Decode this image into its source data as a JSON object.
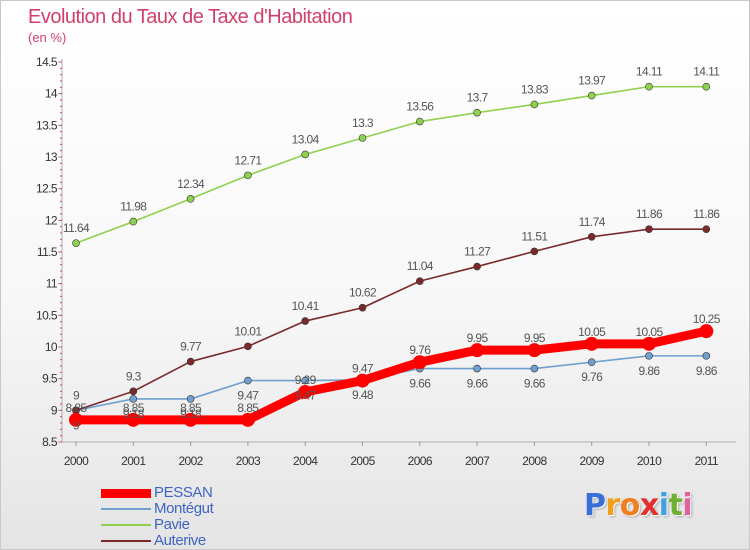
{
  "title": "Evolution du Taux de Taxe d'Habitation",
  "unit": "(en %)",
  "logo": {
    "letters": [
      "P",
      "r",
      "o",
      "x",
      "i",
      "t",
      "i"
    ],
    "colors": [
      "#3a6fd8",
      "#f0a020",
      "#f07f20",
      "#e03030",
      "#40a0e0",
      "#70b030",
      "#e060a0"
    ]
  },
  "chart_data": {
    "type": "line",
    "title": "Evolution du Taux de Taxe d'Habitation",
    "ylabel": "(en %)",
    "xlabel": "",
    "x": [
      "2000",
      "2001",
      "2002",
      "2003",
      "2004",
      "2005",
      "2006",
      "2007",
      "2008",
      "2009",
      "2010",
      "2011"
    ],
    "ylim": [
      8.5,
      14.5
    ],
    "yticks": [
      "8.5",
      "9",
      "9.5",
      "10",
      "10.5",
      "11",
      "11.5",
      "12",
      "12.5",
      "13",
      "13.5",
      "14",
      "14.5"
    ],
    "grid": false,
    "legend_position": "bottom-left",
    "series": [
      {
        "name": "PESSAN",
        "color": "#ff0000",
        "values": [
          8.85,
          8.85,
          8.85,
          8.85,
          9.29,
          9.47,
          9.76,
          9.95,
          9.95,
          10.05,
          10.05,
          10.25
        ],
        "labels": [
          "8.85",
          "8.85",
          "8.85",
          "8.85",
          "9.29",
          "9.47",
          "9.76",
          "9.95",
          "9.95",
          "10.05",
          "10.05",
          "10.25"
        ]
      },
      {
        "name": "Montégut",
        "color": "#6fa0cf",
        "values": [
          9,
          9.18,
          9.18,
          9.47,
          9.47,
          9.48,
          9.66,
          9.66,
          9.66,
          9.76,
          9.86,
          9.86
        ],
        "labels": [
          "9",
          "9.18",
          "9.18",
          "9.47",
          "9.47",
          "9.48",
          "9.66",
          "9.66",
          "9.66",
          "9.76",
          "9.86",
          "9.86"
        ]
      },
      {
        "name": "Pavie",
        "color": "#8fd14f",
        "values": [
          11.64,
          11.98,
          12.34,
          12.71,
          13.04,
          13.3,
          13.56,
          13.7,
          13.83,
          13.97,
          14.11,
          14.11
        ],
        "labels": [
          "11.64",
          "11.98",
          "12.34",
          "12.71",
          "13.04",
          "13.3",
          "13.56",
          "13.7",
          "13.83",
          "13.97",
          "14.11",
          "14.11"
        ]
      },
      {
        "name": "Auterive",
        "color": "#7a2a2a",
        "values": [
          9,
          9.3,
          9.77,
          10.01,
          10.41,
          10.62,
          11.04,
          11.27,
          11.51,
          11.74,
          11.86,
          11.86
        ],
        "labels": [
          "9",
          "9.3",
          "9.77",
          "10.01",
          "10.41",
          "10.62",
          "11.04",
          "11.27",
          "11.51",
          "11.74",
          "11.86",
          "11.86"
        ]
      }
    ]
  }
}
